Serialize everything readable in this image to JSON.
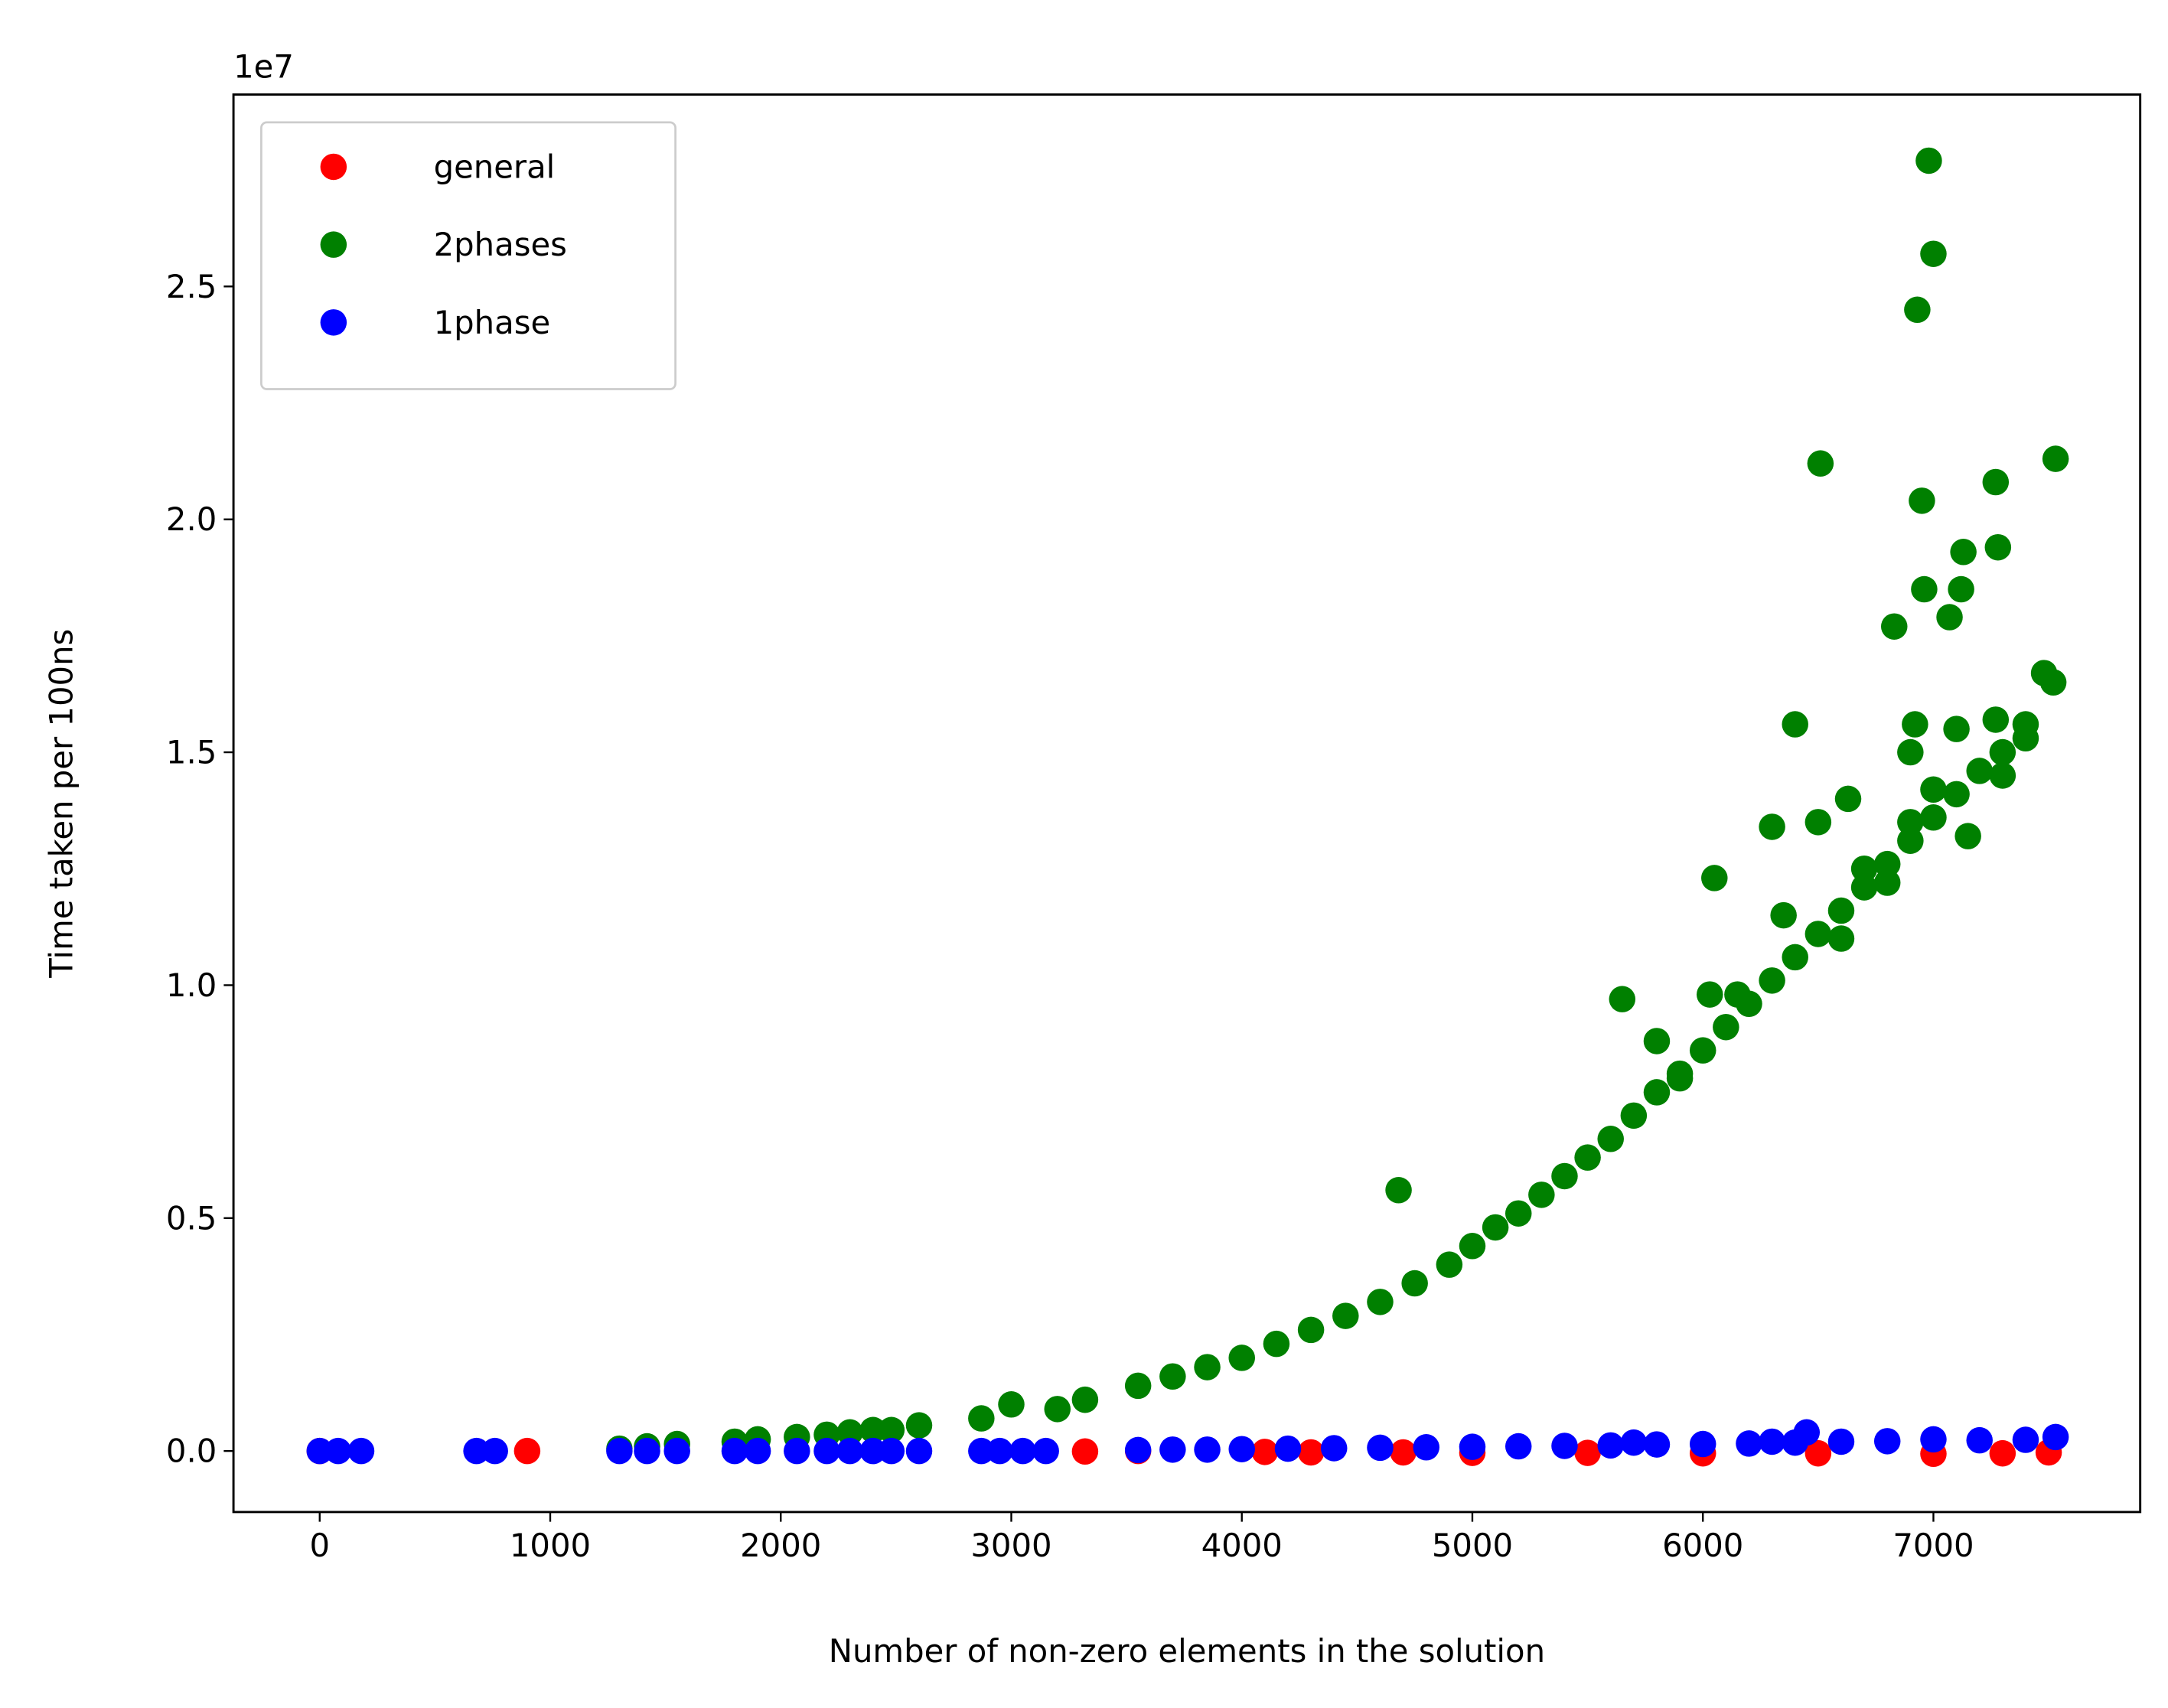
{
  "chart_data": {
    "type": "scatter",
    "x_label": "Number of non-zero elements in the solution",
    "y_label": "Time taken per 100ns",
    "y_offset_label": "1e7",
    "xlim": [
      -374,
      7897
    ],
    "ylim": [
      -0.131,
      2.912
    ],
    "xticks": [
      0,
      1000,
      2000,
      3000,
      4000,
      5000,
      6000,
      7000
    ],
    "yticks": [
      {
        "value": 0,
        "label": "0.0"
      },
      {
        "value": 0.5,
        "label": "0.5"
      },
      {
        "value": 1,
        "label": "1.0"
      },
      {
        "value": 1.5,
        "label": "1.5"
      },
      {
        "value": 2,
        "label": "2.0"
      },
      {
        "value": 2.5,
        "label": "2.5"
      }
    ],
    "legend": "upper left",
    "series": [
      {
        "name": "general",
        "color": "#ff0000",
        "x": [
          0,
          900,
          3320,
          3550,
          4100,
          4300,
          4700,
          5000,
          5500,
          6000,
          6500,
          7000,
          7300,
          7500
        ],
        "values": [
          0,
          0,
          -0.001,
          0,
          -0.002,
          -0.003,
          -0.003,
          -0.004,
          -0.004,
          -0.005,
          -0.005,
          -0.006,
          -0.005,
          -0.003
        ]
      },
      {
        "name": "2phases",
        "color": "#008000",
        "x": [
          6980,
          7000,
          6930,
          6510,
          7530,
          6950,
          7270,
          7280,
          7130,
          6960,
          7120,
          7070,
          6830,
          7480,
          7520,
          6400,
          6920,
          7270,
          7400,
          6630,
          6500,
          6300,
          6050,
          6350,
          5650,
          6030,
          6150,
          4680,
          2870,
          3000,
          3200,
          3320,
          3550,
          3700,
          3850,
          4000,
          4150,
          4300,
          4450,
          4600,
          4750,
          4900,
          5000,
          5100,
          5200,
          5300,
          5400,
          5500,
          5600,
          5700,
          5800,
          5900,
          6000,
          6100,
          6200,
          6300,
          6400,
          6500,
          6600,
          6700,
          6800,
          6900,
          7000,
          7100,
          7200,
          7300,
          7400,
          6700,
          6800,
          6900,
          1300,
          1420,
          1550,
          1800,
          1900,
          2070,
          2200,
          2300,
          2400,
          2480,
          2600,
          5800,
          5900,
          6600,
          6900,
          7100,
          7300,
          7150,
          7000
        ],
        "values": [
          2.77,
          2.57,
          2.45,
          2.12,
          2.13,
          2.04,
          2.08,
          1.94,
          1.93,
          1.85,
          1.85,
          1.79,
          1.77,
          1.67,
          1.65,
          1.56,
          1.56,
          1.57,
          1.56,
          1.4,
          1.35,
          1.34,
          1.23,
          1.15,
          0.97,
          0.98,
          0.98,
          0.56,
          0.07,
          0.1,
          0.09,
          0.11,
          0.14,
          0.16,
          0.18,
          0.2,
          0.23,
          0.26,
          0.29,
          0.32,
          0.36,
          0.4,
          0.44,
          0.48,
          0.51,
          0.55,
          0.59,
          0.63,
          0.67,
          0.72,
          0.77,
          0.81,
          0.86,
          0.91,
          0.96,
          1.01,
          1.06,
          1.11,
          1.16,
          1.21,
          1.26,
          1.31,
          1.36,
          1.41,
          1.46,
          1.5,
          1.53,
          1.25,
          1.22,
          1.35,
          0.005,
          0.01,
          0.015,
          0.02,
          0.025,
          0.03,
          0.035,
          0.04,
          0.045,
          0.045,
          0.055,
          0.88,
          0.8,
          1.1,
          1.5,
          1.55,
          1.45,
          1.32,
          1.42
        ]
      },
      {
        "name": "1phase",
        "color": "#0000ff",
        "x": [
          0,
          80,
          180,
          680,
          760,
          1300,
          1420,
          1550,
          1800,
          1900,
          2070,
          2200,
          2300,
          2400,
          2480,
          2600,
          2870,
          2950,
          3050,
          3150,
          3550,
          3700,
          3850,
          4000,
          4200,
          4400,
          4600,
          4800,
          5000,
          5200,
          5400,
          5600,
          5700,
          5800,
          6000,
          6200,
          6300,
          6400,
          6450,
          6600,
          6800,
          7000,
          7200,
          7400,
          7530
        ],
        "values": [
          0,
          0,
          0,
          0,
          0,
          0,
          0,
          0,
          0,
          0,
          0,
          0,
          0,
          0,
          0,
          0,
          0,
          0,
          0,
          0,
          0.002,
          0.003,
          0.003,
          0.004,
          0.005,
          0.006,
          0.007,
          0.008,
          0.009,
          0.01,
          0.011,
          0.012,
          0.018,
          0.014,
          0.015,
          0.016,
          0.02,
          0.018,
          0.04,
          0.02,
          0.021,
          0.025,
          0.023,
          0.024,
          0.03
        ]
      }
    ]
  }
}
